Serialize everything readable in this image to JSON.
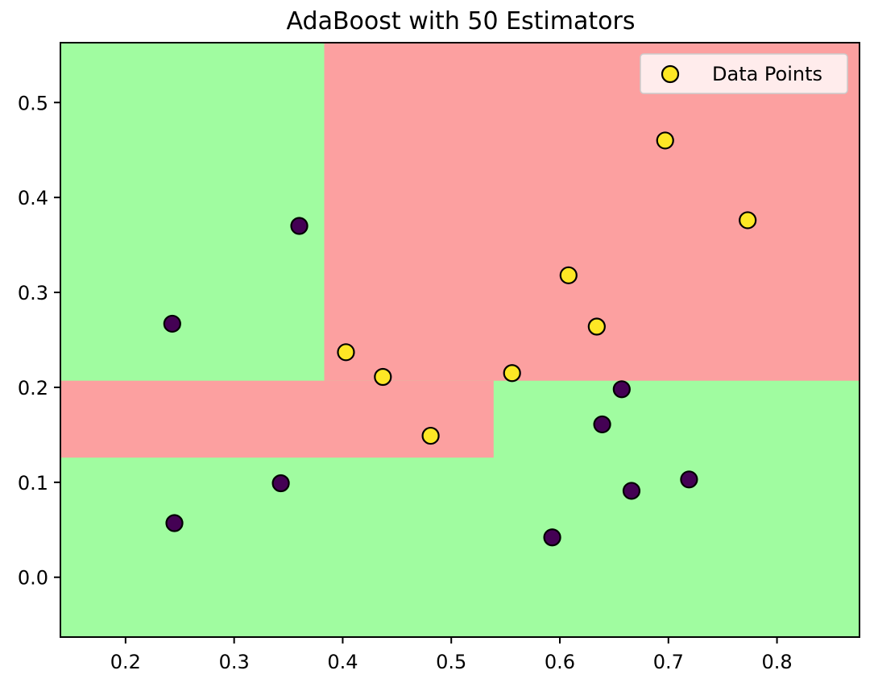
{
  "chart_data": {
    "type": "scatter",
    "title": "AdaBoost with 50 Estimators",
    "xlabel": "",
    "ylabel": "",
    "xlim": [
      0.14,
      0.876
    ],
    "ylim": [
      -0.063,
      0.563
    ],
    "x_ticks": [
      "0.2",
      "0.3",
      "0.4",
      "0.5",
      "0.6",
      "0.7",
      "0.8"
    ],
    "x_tick_values": [
      0.2,
      0.3,
      0.4,
      0.5,
      0.6,
      0.7,
      0.8
    ],
    "y_ticks": [
      "0.0",
      "0.1",
      "0.2",
      "0.3",
      "0.4",
      "0.5"
    ],
    "y_tick_values": [
      0.0,
      0.1,
      0.2,
      0.3,
      0.4,
      0.5
    ],
    "grid": false,
    "legend": {
      "position": "upper-right",
      "entries": [
        "Data Points"
      ]
    },
    "decision_regions": {
      "background_class": 0,
      "regions": [
        {
          "class": 1,
          "x": [
            0.383,
            0.876
          ],
          "y": [
            0.207,
            0.563
          ]
        },
        {
          "class": 1,
          "x": [
            0.14,
            0.539
          ],
          "y": [
            0.126,
            0.207
          ]
        }
      ]
    },
    "class_colors": {
      "region_0": "#a0fca0",
      "region_1": "#fca0a0",
      "point_0": "#440154",
      "point_1": "#fde725",
      "edge": "#000000"
    },
    "points": [
      {
        "x": 0.243,
        "y": 0.267,
        "class": 0
      },
      {
        "x": 0.245,
        "y": 0.057,
        "class": 0
      },
      {
        "x": 0.343,
        "y": 0.099,
        "class": 0
      },
      {
        "x": 0.36,
        "y": 0.37,
        "class": 0
      },
      {
        "x": 0.403,
        "y": 0.237,
        "class": 1
      },
      {
        "x": 0.437,
        "y": 0.211,
        "class": 1
      },
      {
        "x": 0.481,
        "y": 0.149,
        "class": 1
      },
      {
        "x": 0.556,
        "y": 0.215,
        "class": 1
      },
      {
        "x": 0.593,
        "y": 0.042,
        "class": 0
      },
      {
        "x": 0.608,
        "y": 0.318,
        "class": 1
      },
      {
        "x": 0.634,
        "y": 0.264,
        "class": 1
      },
      {
        "x": 0.639,
        "y": 0.161,
        "class": 0
      },
      {
        "x": 0.657,
        "y": 0.198,
        "class": 0
      },
      {
        "x": 0.666,
        "y": 0.091,
        "class": 0
      },
      {
        "x": 0.697,
        "y": 0.46,
        "class": 1
      },
      {
        "x": 0.719,
        "y": 0.103,
        "class": 0
      },
      {
        "x": 0.773,
        "y": 0.376,
        "class": 1
      }
    ]
  }
}
